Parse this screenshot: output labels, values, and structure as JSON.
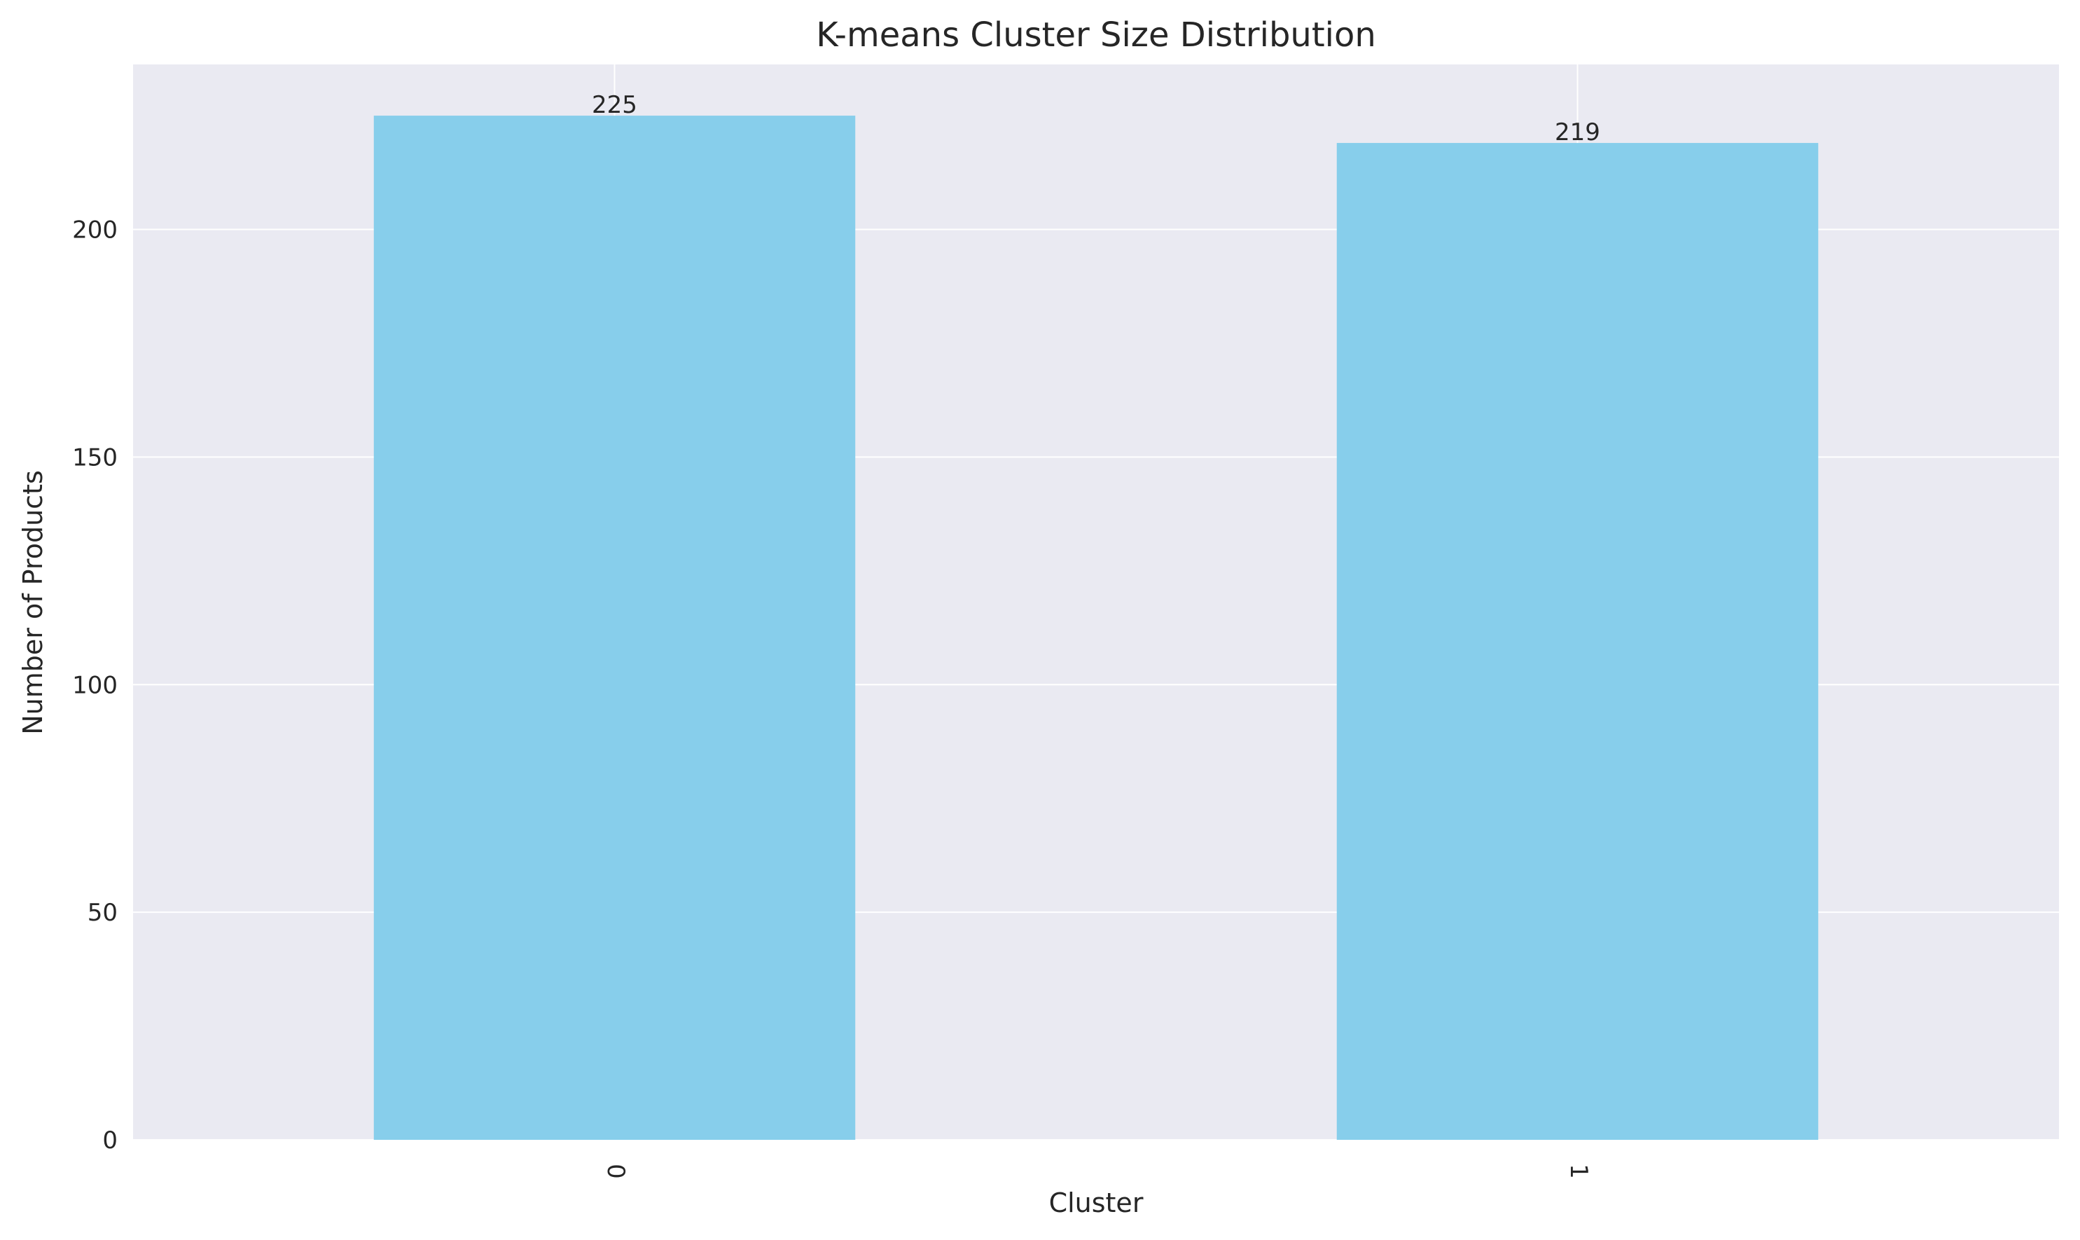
{
  "chart_data": {
    "type": "bar",
    "title": "K-means Cluster Size Distribution",
    "xlabel": "Cluster",
    "ylabel": "Number of Products",
    "categories": [
      "0",
      "1"
    ],
    "values": [
      225,
      219
    ],
    "data_labels": [
      "225",
      "219"
    ],
    "yticks": [
      0,
      50,
      100,
      150,
      200
    ],
    "ylim": [
      0,
      236.25
    ],
    "grid": true,
    "legend": "none",
    "bar_color": "#87CEEB",
    "background_color": "#EAEAF2",
    "grid_color": "#FFFFFF"
  }
}
